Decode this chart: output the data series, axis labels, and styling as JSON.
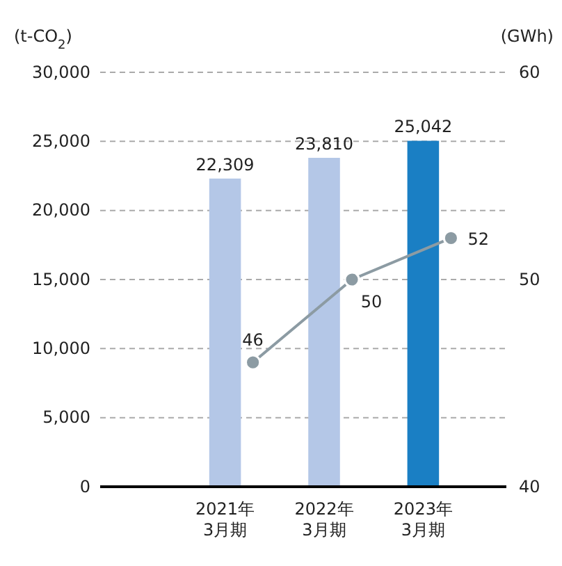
{
  "chart_data": {
    "type": "bar",
    "ylabel": "(t-CO$_{2}$)",
    "y2label": "(GWh)",
    "categories": [
      "2021年\n3月期",
      "2022年\n3月期",
      "2023年\n3月期"
    ],
    "series": [
      {
        "colors": [
          "#b4c7e7",
          "#b4c7e7",
          "#1a7fc4"
        ],
        "values": [
          22309,
          23810,
          25042
        ],
        "value_labels": [
          "22,309",
          "23,810",
          "25,042"
        ]
      },
      {
        "type": "line",
        "axis": "y2",
        "color": "#8c9ba3",
        "values": [
          46,
          50,
          52
        ]
      }
    ],
    "ylim": [
      0,
      30000
    ],
    "yticks": [
      {
        "value": 0,
        "label": "0"
      },
      {
        "value": 5000,
        "label": "5,000"
      },
      {
        "value": 10000,
        "label": "10,000"
      },
      {
        "value": 15000,
        "label": "15,000"
      },
      {
        "value": 20000,
        "label": "20,000"
      },
      {
        "value": 25000,
        "label": "25,000"
      },
      {
        "value": 30000,
        "label": "30,000"
      }
    ],
    "y2lim": [
      40,
      60
    ],
    "y2ticks": [
      40,
      50,
      60
    ],
    "grid": "y",
    "marker": "circle",
    "line_style": "solid",
    "data_labels": true
  }
}
